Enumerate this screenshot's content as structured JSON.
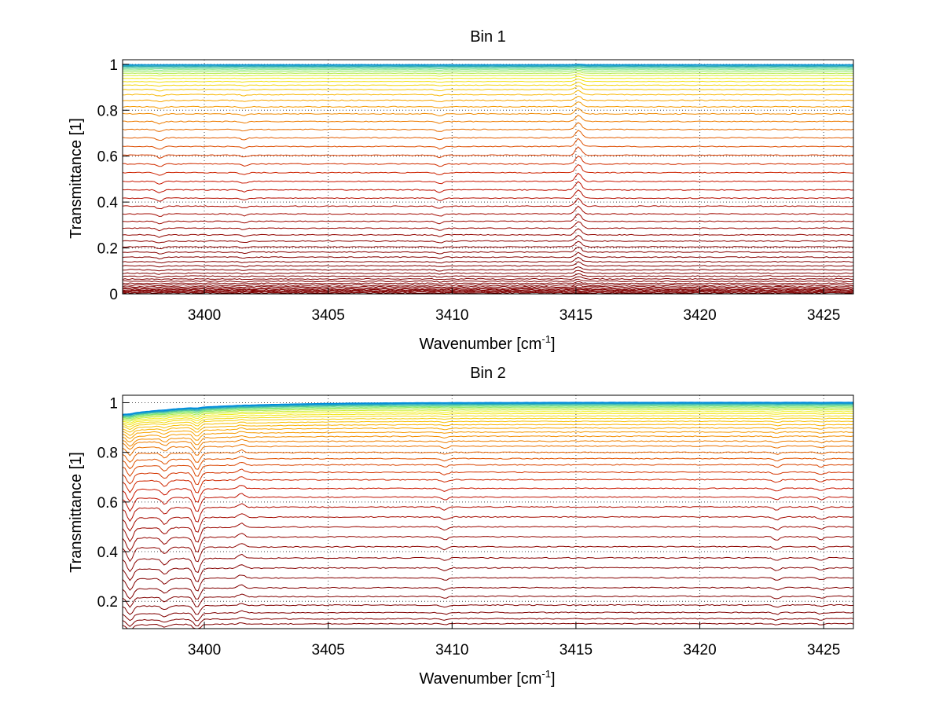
{
  "chart_data": [
    {
      "type": "line",
      "title": "Bin 1",
      "xlabel": "Wavenumber [cm",
      "xlabel_sup": "-1",
      "xlabel_end": "]",
      "ylabel": "Transmittance [1]",
      "xlim": [
        3396.7,
        3426.2
      ],
      "ylim": [
        0,
        1.02
      ],
      "xticks": [
        3400,
        3405,
        3410,
        3415,
        3420,
        3425
      ],
      "yticks": [
        0,
        0.2,
        0.4,
        0.6,
        0.8,
        1
      ],
      "ytick_labels": [
        "0",
        "0.2",
        "0.4",
        "0.6",
        "0.8",
        "1"
      ],
      "grid": "dotted",
      "colormap": "jet (blue at 1, dark red at 0)",
      "series_levels": [
        0.0,
        0.004,
        0.008,
        0.012,
        0.016,
        0.02,
        0.025,
        0.031,
        0.038,
        0.046,
        0.055,
        0.065,
        0.077,
        0.09,
        0.105,
        0.122,
        0.14,
        0.16,
        0.182,
        0.205,
        0.23,
        0.257,
        0.286,
        0.316,
        0.348,
        0.382,
        0.417,
        0.453,
        0.49,
        0.528,
        0.566,
        0.604,
        0.642,
        0.68,
        0.716,
        0.751,
        0.784,
        0.815,
        0.843,
        0.868,
        0.89,
        0.909,
        0.925,
        0.939,
        0.951,
        0.961,
        0.969,
        0.976,
        0.982,
        0.987,
        0.991,
        0.994,
        0.997,
        0.999
      ],
      "features": [
        {
          "x": 3415.1,
          "depth": 0.035,
          "sign": 1
        },
        {
          "x": 3398.2,
          "depth": 0.012,
          "sign": -1
        },
        {
          "x": 3409.5,
          "depth": 0.01,
          "sign": -1
        },
        {
          "x": 3401.6,
          "depth": 0.008,
          "sign": -1
        }
      ]
    },
    {
      "type": "line",
      "title": "Bin 2",
      "xlabel": "Wavenumber [cm",
      "xlabel_sup": "-1",
      "xlabel_end": "]",
      "ylabel": "Transmittance [1]",
      "xlim": [
        3396.7,
        3426.2
      ],
      "ylim": [
        0.09,
        1.03
      ],
      "xticks": [
        3400,
        3405,
        3410,
        3415,
        3420,
        3425
      ],
      "yticks": [
        0.2,
        0.4,
        0.6,
        0.8,
        1
      ],
      "ytick_labels": [
        "0.2",
        "0.4",
        "0.6",
        "0.8",
        "1"
      ],
      "grid": "dotted",
      "colormap": "jet (blue at 1, dark red at low values)",
      "series_levels": [
        0.11,
        0.13,
        0.155,
        0.185,
        0.22,
        0.255,
        0.295,
        0.335,
        0.375,
        0.42,
        0.46,
        0.5,
        0.54,
        0.58,
        0.62,
        0.655,
        0.69,
        0.72,
        0.75,
        0.775,
        0.8,
        0.825,
        0.845,
        0.865,
        0.882,
        0.898,
        0.912,
        0.925,
        0.937,
        0.947,
        0.956,
        0.964,
        0.971,
        0.977,
        0.982,
        0.986,
        0.99,
        0.993,
        0.996,
        0.998,
        1.0,
        1.002
      ],
      "features": [
        {
          "x": 3399.7,
          "depth": 0.06,
          "sign": -1
        },
        {
          "x": 3397.0,
          "depth": 0.05,
          "sign": -1
        },
        {
          "x": 3398.4,
          "depth": 0.025,
          "sign": -1
        },
        {
          "x": 3401.5,
          "depth": 0.015,
          "sign": 1
        },
        {
          "x": 3409.7,
          "depth": 0.012,
          "sign": -1
        },
        {
          "x": 3423.1,
          "depth": 0.012,
          "sign": -1
        },
        {
          "x": 3424.9,
          "depth": 0.01,
          "sign": -1
        }
      ]
    }
  ]
}
